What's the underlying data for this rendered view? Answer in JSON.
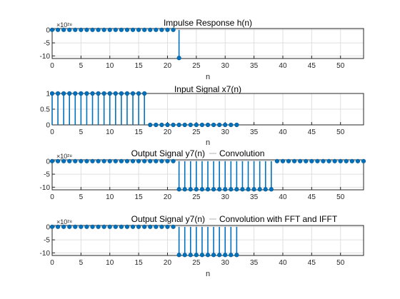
{
  "colors": {
    "stem": "#0072BD",
    "grid": "#dfdfdf",
    "axis": "#262626",
    "background": "#ffffff"
  },
  "chart_data": [
    {
      "type": "stem",
      "title": "Impulse Response h(n)",
      "xlabel": "n",
      "ylabel": "",
      "xlim": [
        0,
        54
      ],
      "ylim": [
        -11,
        0.5
      ],
      "xticks": [
        "0",
        "5",
        "10",
        "15",
        "20",
        "25",
        "30",
        "35",
        "40",
        "45",
        "50"
      ],
      "yticks": [
        {
          "v": 0,
          "label": "0"
        },
        {
          "v": -5,
          "label": "-5"
        },
        {
          "v": -10,
          "label": "-10"
        }
      ],
      "exponent": "×10²⁸",
      "grid": true,
      "series": [
        {
          "x": [
            0,
            1,
            2,
            3,
            4,
            5,
            6,
            7,
            8,
            9,
            10,
            11,
            12,
            13,
            14,
            15,
            16,
            17,
            18,
            19,
            20,
            21,
            22
          ],
          "y": [
            0,
            0,
            0,
            0,
            0,
            0,
            0,
            0,
            0,
            0,
            0,
            0,
            0,
            0,
            0,
            0,
            0,
            0,
            0,
            0,
            0,
            0,
            -10.8
          ]
        }
      ]
    },
    {
      "type": "stem",
      "title": "Input Signal x7(n)",
      "xlabel": "n",
      "ylabel": "",
      "xlim": [
        0,
        54
      ],
      "ylim": [
        0,
        1
      ],
      "xticks": [
        "0",
        "5",
        "10",
        "15",
        "20",
        "25",
        "30",
        "35",
        "40",
        "45",
        "50"
      ],
      "yticks": [
        {
          "v": 0,
          "label": "0"
        },
        {
          "v": 0.5,
          "label": "0.5"
        },
        {
          "v": 1,
          "label": "1"
        }
      ],
      "exponent": "",
      "grid": true,
      "series": [
        {
          "x": [
            0,
            1,
            2,
            3,
            4,
            5,
            6,
            7,
            8,
            9,
            10,
            11,
            12,
            13,
            14,
            15,
            16,
            17,
            18,
            19,
            20,
            21,
            22,
            23,
            24,
            25,
            26,
            27,
            28,
            29,
            30,
            31,
            32
          ],
          "y": [
            1,
            1,
            1,
            1,
            1,
            1,
            1,
            1,
            1,
            1,
            1,
            1,
            1,
            1,
            1,
            1,
            1,
            0,
            0,
            0,
            0,
            0,
            0,
            0,
            0,
            0,
            0,
            0,
            0,
            0,
            0,
            0,
            0
          ]
        }
      ]
    },
    {
      "type": "stem",
      "title": "Output Signal y7(n)",
      "legend": "Convolution",
      "xlabel": "",
      "ylabel": "",
      "xlim": [
        0,
        54
      ],
      "ylim": [
        -11,
        0.5
      ],
      "xticks": [
        "0",
        "5",
        "10",
        "15",
        "20",
        "25",
        "30",
        "35",
        "40",
        "45",
        "50"
      ],
      "yticks": [
        {
          "v": 0,
          "label": "0"
        },
        {
          "v": -5,
          "label": "-5"
        },
        {
          "v": -10,
          "label": "-10"
        }
      ],
      "exponent": "×10²⁸",
      "grid": true,
      "series": [
        {
          "x": [
            0,
            1,
            2,
            3,
            4,
            5,
            6,
            7,
            8,
            9,
            10,
            11,
            12,
            13,
            14,
            15,
            16,
            17,
            18,
            19,
            20,
            21,
            22,
            23,
            24,
            25,
            26,
            27,
            28,
            29,
            30,
            31,
            32,
            33,
            34,
            35,
            36,
            37,
            38,
            39,
            40,
            41,
            42,
            43,
            44,
            45,
            46,
            47,
            48,
            49,
            50,
            51,
            52,
            53,
            54
          ],
          "y": [
            0,
            0,
            0,
            0,
            0,
            0,
            0,
            0,
            0,
            0,
            0,
            0,
            0,
            0,
            0,
            0,
            0,
            0,
            0,
            0,
            0,
            0,
            -10.8,
            -10.8,
            -10.8,
            -10.8,
            -10.8,
            -10.8,
            -10.8,
            -10.8,
            -10.8,
            -10.8,
            -10.8,
            -10.8,
            -10.8,
            -10.8,
            -10.8,
            -10.8,
            -10.8,
            0,
            0,
            0,
            0,
            0,
            0,
            0,
            0,
            0,
            0,
            0,
            0,
            0,
            0,
            0,
            0
          ]
        }
      ]
    },
    {
      "type": "stem",
      "title": "Output Signal y7(n)",
      "legend": "Convolution with FFT and IFFT",
      "xlabel": "n",
      "ylabel": "",
      "xlim": [
        0,
        54
      ],
      "ylim": [
        -11,
        0.5
      ],
      "xticks": [
        "0",
        "5",
        "10",
        "15",
        "20",
        "25",
        "30",
        "35",
        "40",
        "45",
        "50"
      ],
      "yticks": [
        {
          "v": 0,
          "label": "0"
        },
        {
          "v": -5,
          "label": "-5"
        },
        {
          "v": -10,
          "label": "-10"
        }
      ],
      "exponent": "×10²⁸",
      "grid": true,
      "series": [
        {
          "x": [
            0,
            1,
            2,
            3,
            4,
            5,
            6,
            7,
            8,
            9,
            10,
            11,
            12,
            13,
            14,
            15,
            16,
            17,
            18,
            19,
            20,
            21,
            22,
            23,
            24,
            25,
            26,
            27,
            28,
            29,
            30,
            31,
            32
          ],
          "y": [
            0,
            0,
            0,
            0,
            0,
            0,
            0,
            0,
            0,
            0,
            0,
            0,
            0,
            0,
            0,
            0,
            0,
            0,
            0,
            0,
            0,
            0,
            -10.8,
            -10.8,
            -10.8,
            -10.8,
            -10.8,
            -10.8,
            -10.8,
            -10.8,
            -10.8,
            -10.8,
            -10.8
          ]
        }
      ]
    }
  ]
}
